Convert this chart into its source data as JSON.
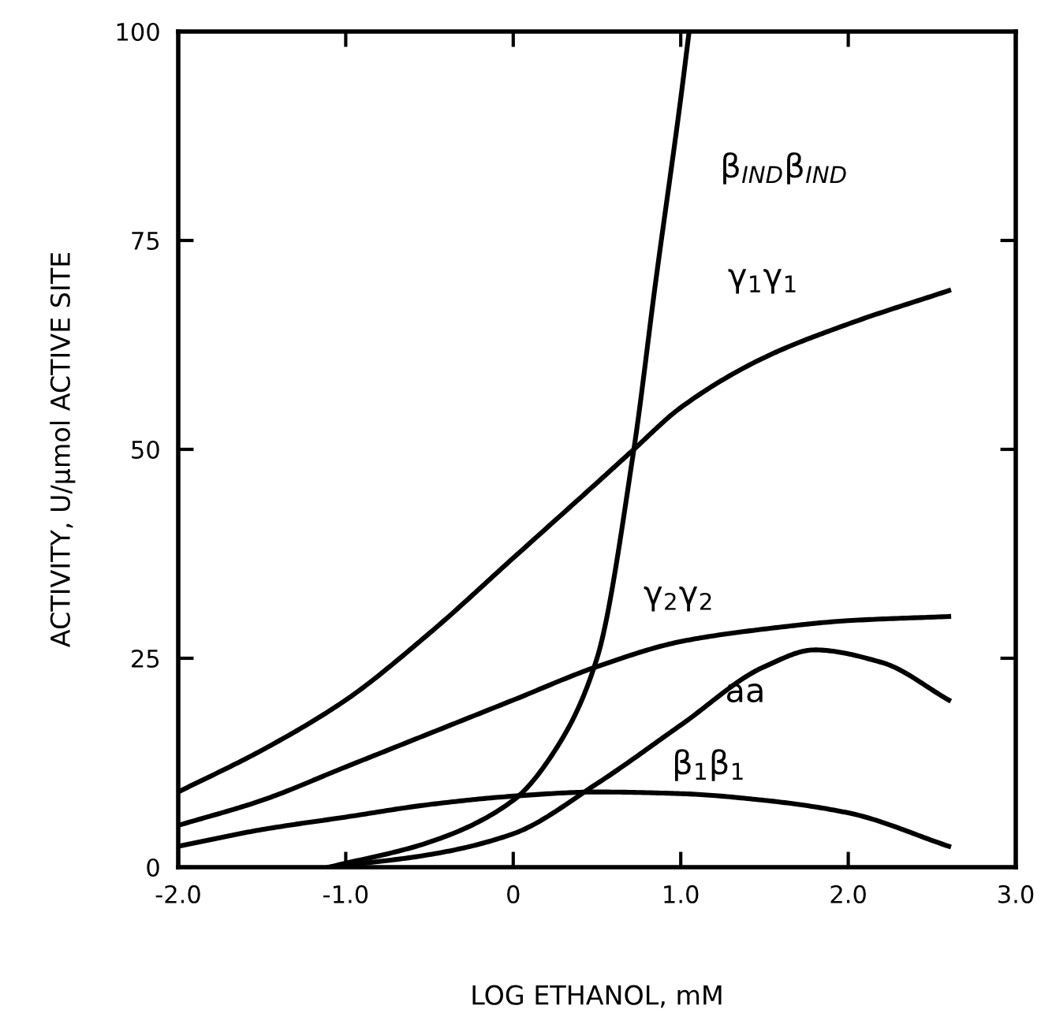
{
  "chart_data": {
    "type": "line",
    "xlabel": "LOG ETHANOL, mM",
    "ylabel": "ACTIVITY, U/μmol ACTIVE SITE",
    "xlim": [
      -2.0,
      3.0
    ],
    "ylim": [
      0,
      100
    ],
    "xticks": [
      {
        "value": -2.0,
        "label": "-2.0"
      },
      {
        "value": -1.0,
        "label": "-1.0"
      },
      0,
      {
        "value": 1.0,
        "label": "1.0"
      },
      {
        "value": 2.0,
        "label": "2.0"
      },
      {
        "value": 3.0,
        "label": "3.0"
      }
    ],
    "yticks": [
      0,
      25,
      50,
      75,
      100
    ],
    "grid": false,
    "legend": false,
    "marker": "none",
    "line_style": "solid",
    "series": [
      {
        "name": "β$_{IND}$β$_{IND}$",
        "color": "#000000",
        "x": [
          -1.1,
          -0.5,
          0,
          0.25,
          0.5,
          0.72,
          0.85,
          1.0,
          1.05
        ],
        "values": [
          0,
          3,
          8,
          14,
          25,
          50,
          70,
          92,
          100
        ]
      },
      {
        "name": "γ$_{1}$γ$_{1}$",
        "color": "#000000",
        "x": [
          -2.0,
          -1.5,
          -1.0,
          -0.5,
          0,
          0.5,
          0.72,
          1.0,
          1.5,
          2.0,
          2.6
        ],
        "values": [
          9,
          14,
          20,
          28,
          37,
          46,
          50,
          55,
          61,
          65,
          69
        ]
      },
      {
        "name": "γ$_{2}$γ$_{2}$",
        "color": "#000000",
        "x": [
          -2.0,
          -1.5,
          -1.0,
          -0.5,
          0,
          0.5,
          1.0,
          1.5,
          2.0,
          2.6
        ],
        "values": [
          5,
          8,
          12,
          16,
          20,
          24,
          27,
          28.5,
          29.5,
          30
        ]
      },
      {
        "name": "aa",
        "color": "#000000",
        "x": [
          -1.1,
          -0.5,
          0,
          0.5,
          1.0,
          1.5,
          1.8,
          2.2,
          2.6
        ],
        "values": [
          0,
          1.5,
          4,
          10,
          17,
          24,
          26,
          24.5,
          20
        ]
      },
      {
        "name": "β$_{1}$β$_{1}$",
        "color": "#000000",
        "x": [
          -2.0,
          -1.5,
          -1.0,
          -0.5,
          0,
          0.5,
          1.0,
          1.5,
          2.0,
          2.6
        ],
        "values": [
          2.5,
          4.5,
          6,
          7.5,
          8.5,
          9,
          8.8,
          8,
          6.5,
          2.5
        ]
      }
    ]
  }
}
